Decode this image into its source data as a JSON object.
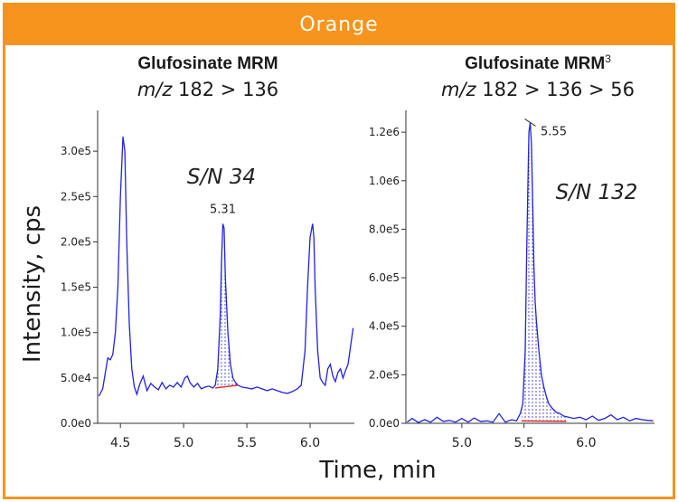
{
  "banner": "Orange",
  "axes": {
    "ylabel": "Intensity, cps",
    "xlabel": "Time, min"
  },
  "colors": {
    "accent": "#f7941d",
    "trace": "#2222e0",
    "baseline": "#e03030"
  },
  "chart_data": [
    {
      "type": "line",
      "title": "Glufosinate MRM",
      "subtitle_prefix": "m/z",
      "subtitle_rest": " 182 > 136",
      "xlim": [
        4.32,
        6.35
      ],
      "ylim": [
        0,
        345000
      ],
      "yticks": [
        0,
        50000,
        100000,
        150000,
        200000,
        250000,
        300000
      ],
      "ytick_labels": [
        "0.0e0",
        "5.0e4",
        "1.0e5",
        "1.5e5",
        "2.0e5",
        "2.5e5",
        "3.0e5"
      ],
      "xticks": [
        4.5,
        5.0,
        5.5,
        6.0
      ],
      "xtick_labels": [
        "4.5",
        "5.0",
        "5.5",
        "6.0"
      ],
      "peak_label": "5.31",
      "peak_time": 5.31,
      "sn_label": "S/N 34",
      "integration": {
        "start": 5.25,
        "end": 5.43,
        "y_start": 39000,
        "y_end": 42000
      },
      "series": {
        "x": [
          4.33,
          4.36,
          4.38,
          4.4,
          4.42,
          4.44,
          4.46,
          4.48,
          4.5,
          4.52,
          4.535,
          4.55,
          4.57,
          4.59,
          4.61,
          4.63,
          4.65,
          4.68,
          4.71,
          4.74,
          4.77,
          4.8,
          4.83,
          4.86,
          4.89,
          4.92,
          4.95,
          4.98,
          5.01,
          5.03,
          5.05,
          5.08,
          5.11,
          5.14,
          5.17,
          5.2,
          5.23,
          5.25,
          5.27,
          5.29,
          5.3,
          5.31,
          5.32,
          5.33,
          5.35,
          5.37,
          5.39,
          5.41,
          5.43,
          5.46,
          5.5,
          5.54,
          5.58,
          5.62,
          5.66,
          5.7,
          5.74,
          5.78,
          5.82,
          5.86,
          5.9,
          5.93,
          5.96,
          5.98,
          6.0,
          6.02,
          6.03,
          6.04,
          6.06,
          6.08,
          6.1,
          6.12,
          6.14,
          6.16,
          6.18,
          6.2,
          6.22,
          6.24,
          6.26,
          6.28,
          6.3,
          6.32,
          6.34
        ],
        "y": [
          30000,
          38000,
          55000,
          72000,
          70000,
          76000,
          100000,
          150000,
          250000,
          316000,
          300000,
          200000,
          110000,
          60000,
          40000,
          32000,
          42000,
          52000,
          36000,
          44000,
          40000,
          37000,
          45000,
          38000,
          42000,
          40000,
          45000,
          40000,
          50000,
          52000,
          45000,
          40000,
          44000,
          38000,
          40000,
          41000,
          39000,
          42000,
          60000,
          120000,
          180000,
          220000,
          215000,
          160000,
          100000,
          65000,
          50000,
          45000,
          42000,
          40000,
          39000,
          38000,
          40000,
          38000,
          36000,
          38000,
          36000,
          34000,
          33000,
          35000,
          38000,
          42000,
          80000,
          150000,
          205000,
          220000,
          205000,
          150000,
          80000,
          50000,
          45000,
          42000,
          60000,
          65000,
          52000,
          46000,
          56000,
          60000,
          50000,
          58000,
          65000,
          85000,
          105000
        ]
      }
    },
    {
      "type": "line",
      "title": "Glufosinate MRM",
      "title_sup": "3",
      "subtitle_prefix": "m/z",
      "subtitle_rest": " 182 > 136 > 56",
      "xlim": [
        4.55,
        6.55
      ],
      "ylim": [
        0,
        1290000
      ],
      "yticks": [
        0,
        200000,
        400000,
        600000,
        800000,
        1000000,
        1200000
      ],
      "ytick_labels": [
        "0.0e0",
        "2.0e5",
        "4.0e5",
        "6.0e5",
        "8.0e5",
        "1.0e6",
        "1.2e6"
      ],
      "xticks": [
        5.0,
        5.5,
        6.0
      ],
      "xtick_labels": [
        "5.0",
        "5.5",
        "6.0"
      ],
      "peak_label": "5.55",
      "peak_time": 5.55,
      "sn_label": "S/N 132",
      "integration": {
        "start": 5.48,
        "end": 5.84,
        "y_start": 10000,
        "y_end": 8000
      },
      "series": {
        "x": [
          4.56,
          4.6,
          4.65,
          4.7,
          4.75,
          4.8,
          4.85,
          4.9,
          4.95,
          5.0,
          5.05,
          5.1,
          5.15,
          5.2,
          5.25,
          5.3,
          5.35,
          5.4,
          5.44,
          5.47,
          5.49,
          5.51,
          5.52,
          5.53,
          5.54,
          5.55,
          5.56,
          5.57,
          5.58,
          5.59,
          5.6,
          5.62,
          5.64,
          5.66,
          5.68,
          5.7,
          5.73,
          5.76,
          5.79,
          5.82,
          5.86,
          5.9,
          5.95,
          6.0,
          6.05,
          6.1,
          6.15,
          6.2,
          6.25,
          6.3,
          6.35,
          6.4,
          6.45,
          6.5,
          6.54
        ],
        "y": [
          5000,
          20000,
          3000,
          15000,
          5000,
          25000,
          8000,
          12000,
          5000,
          20000,
          5000,
          22000,
          8000,
          10000,
          5000,
          40000,
          5000,
          15000,
          10000,
          40000,
          80000,
          300000,
          650000,
          950000,
          1200000,
          1240000,
          1150000,
          900000,
          650000,
          500000,
          420000,
          300000,
          200000,
          150000,
          110000,
          80000,
          60000,
          45000,
          40000,
          30000,
          25000,
          20000,
          25000,
          15000,
          30000,
          12000,
          20000,
          35000,
          15000,
          25000,
          10000,
          20000,
          15000,
          12000,
          10000
        ]
      }
    }
  ]
}
